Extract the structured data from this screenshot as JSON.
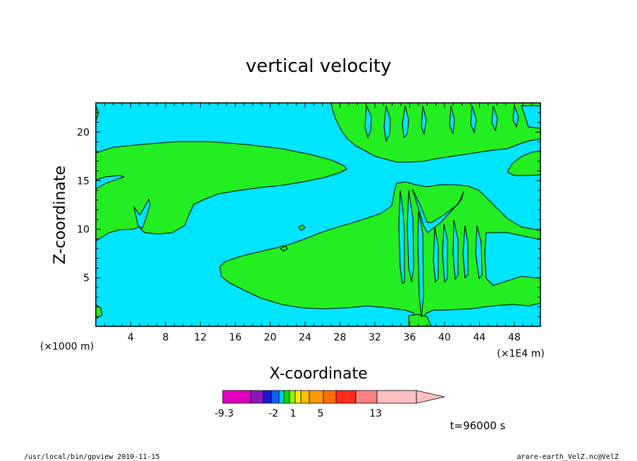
{
  "chart_data": {
    "type": "heatmap",
    "title": "vertical velocity",
    "xlabel": "X-coordinate",
    "ylabel": "Z-coordinate",
    "x_unit_left": "(×1000 m)",
    "x_unit_right": "(×1E4 m)",
    "xlim": [
      0,
      51
    ],
    "ylim": [
      0,
      23
    ],
    "x_ticks": [
      4,
      8,
      12,
      16,
      20,
      24,
      28,
      32,
      36,
      40,
      44,
      48
    ],
    "y_ticks": [
      5,
      10,
      15,
      20
    ],
    "colorbar": {
      "colors": [
        "#e000c0",
        "#8a1ab8",
        "#1a1ad8",
        "#1060ff",
        "#00c8ff",
        "#00e000",
        "#a0ee00",
        "#ffee00",
        "#ffc000",
        "#ff9a00",
        "#ff7000",
        "#ff2a1a",
        "#ff8080",
        "#ffc0c0"
      ],
      "labels": [
        "-9.3",
        "-2",
        "1",
        "5",
        "13"
      ]
    },
    "background_color": "#00e5ff",
    "region_color": "#22ee22",
    "time_label": "t=96000 s"
  },
  "footer": {
    "left": "/usr/local/bin/gpview  2010-11-15",
    "right": "arare-earth_VelZ.nc@VelZ"
  }
}
